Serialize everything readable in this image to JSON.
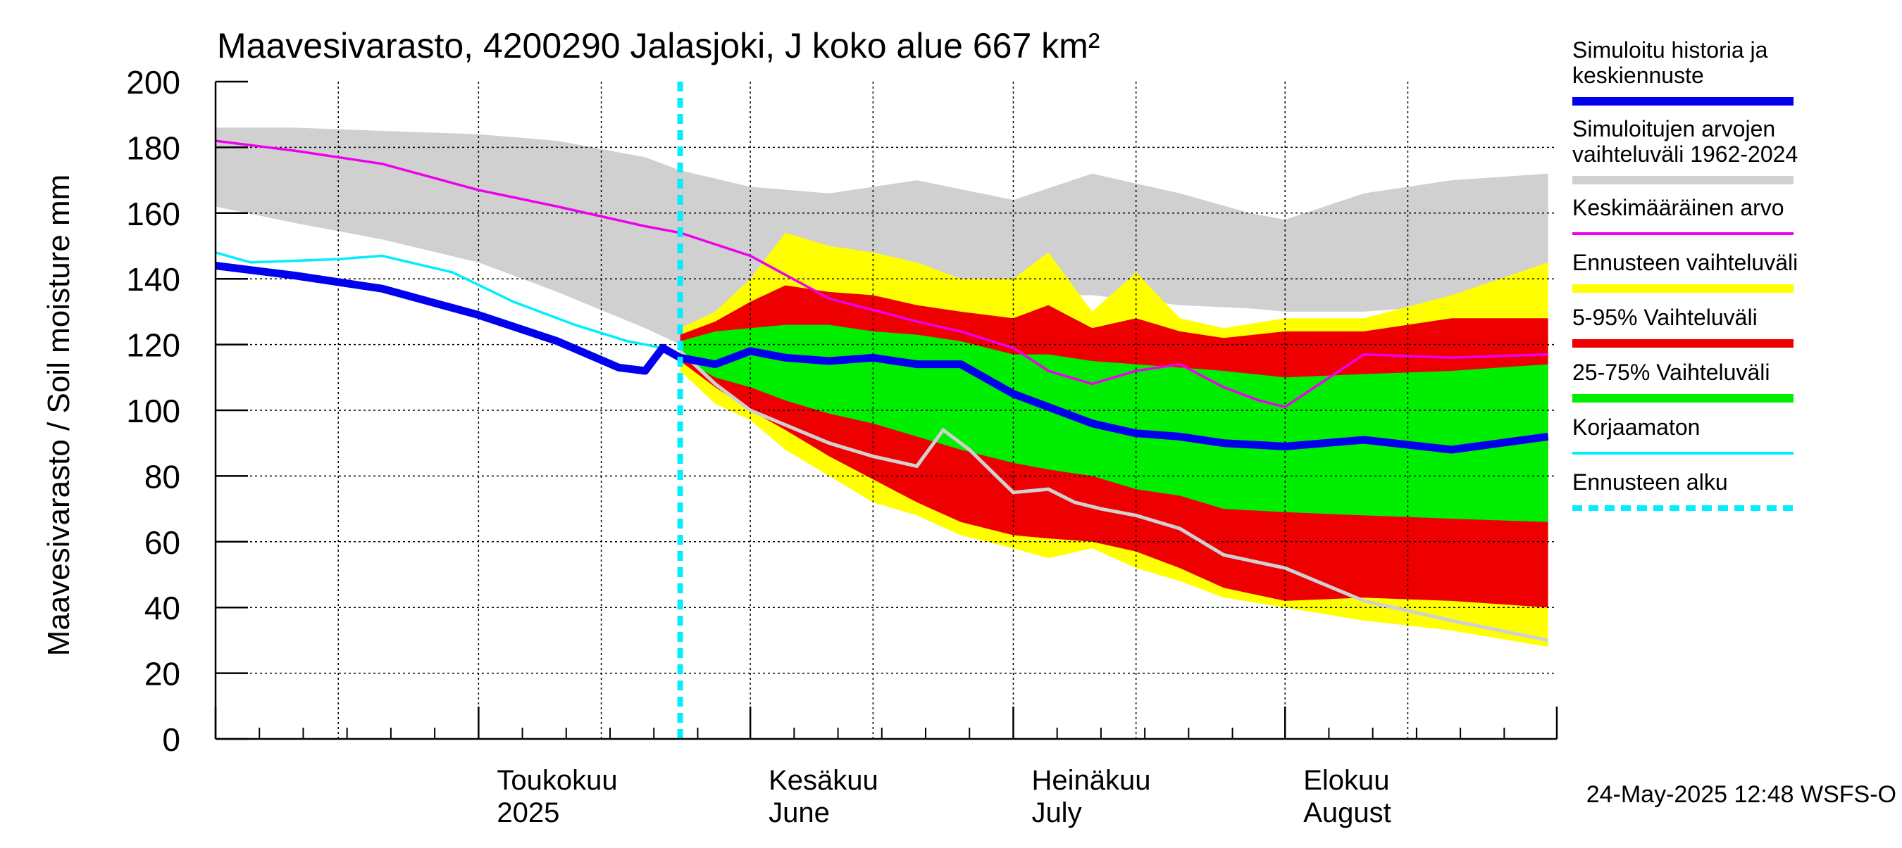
{
  "chart_data": {
    "type": "area",
    "title": "Maavesivarasto, 4200290 Jalasjoki, J koko alue 667 km²",
    "ylabel": "Maavesivarasto / Soil moisture   mm",
    "ylim": [
      0,
      200
    ],
    "yticks": [
      0,
      20,
      40,
      60,
      80,
      100,
      120,
      140,
      160,
      180,
      200
    ],
    "xlim": [
      "2025-04-01",
      "2025-08-31"
    ],
    "grid": true,
    "legend_position": "right",
    "month_labels": [
      {
        "date": "2025-05-01",
        "line1": "Toukokuu",
        "line2": "2025"
      },
      {
        "date": "2025-06-01",
        "line1": "Kesäkuu",
        "line2": "June"
      },
      {
        "date": "2025-07-01",
        "line1": "Heinäkuu",
        "line2": "July"
      },
      {
        "date": "2025-08-01",
        "line1": "Elokuu",
        "line2": "August"
      }
    ],
    "forecast_start": "2025-05-24",
    "timestamp": "24-May-2025 12:48 WSFS-O",
    "legend": [
      {
        "key": "sim",
        "label": [
          "Simuloitu historia ja",
          "keskiennuste"
        ],
        "color": "#0000ee",
        "style": "thick"
      },
      {
        "key": "hist_range",
        "label": [
          "Simuloitujen arvojen",
          "vaihteluväli 1962-2024"
        ],
        "color": "#d0d0d0",
        "style": "thick"
      },
      {
        "key": "mean",
        "label": [
          "Keskimääräinen arvo"
        ],
        "color": "#ee00ee",
        "style": "thin"
      },
      {
        "key": "fc_range",
        "label": [
          "Ennusteen vaihteluväli"
        ],
        "color": "#ffff00",
        "style": "thick"
      },
      {
        "key": "p5_95",
        "label": [
          "5-95% Vaihteluväli"
        ],
        "color": "#ee0000",
        "style": "thick"
      },
      {
        "key": "p25_75",
        "label": [
          "25-75% Vaihteluväli"
        ],
        "color": "#00ee00",
        "style": "thick"
      },
      {
        "key": "uncorr",
        "label": [
          "Korjaamaton"
        ],
        "color": "#00eeff",
        "style": "thin"
      },
      {
        "key": "start",
        "label": [
          "Ennusteen alku"
        ],
        "color": "#00eeff",
        "style": "dashed"
      }
    ],
    "series": {
      "hist_range": {
        "dates": [
          "2025-04-01",
          "2025-04-10",
          "2025-04-20",
          "2025-05-01",
          "2025-05-10",
          "2025-05-20",
          "2025-05-24",
          "2025-06-01",
          "2025-06-10",
          "2025-06-20",
          "2025-07-01",
          "2025-07-10",
          "2025-07-20",
          "2025-07-28",
          "2025-08-01",
          "2025-08-10",
          "2025-08-20",
          "2025-08-31"
        ],
        "upper": [
          186,
          186,
          185,
          184,
          182,
          177,
          173,
          168,
          166,
          170,
          164,
          172,
          166,
          160,
          158,
          166,
          170,
          172
        ],
        "lower": [
          162,
          157,
          152,
          145,
          136,
          125,
          120,
          130,
          133,
          135,
          135,
          135,
          132,
          131,
          130,
          130,
          132,
          136
        ]
      },
      "fc_range": {
        "dates": [
          "2025-05-24",
          "2025-05-28",
          "2025-06-01",
          "2025-06-05",
          "2025-06-10",
          "2025-06-15",
          "2025-06-20",
          "2025-06-25",
          "2025-07-01",
          "2025-07-05",
          "2025-07-10",
          "2025-07-15",
          "2025-07-20",
          "2025-07-25",
          "2025-08-01",
          "2025-08-10",
          "2025-08-20",
          "2025-08-31"
        ],
        "upper": [
          125,
          130,
          140,
          154,
          150,
          148,
          145,
          140,
          140,
          148,
          130,
          142,
          128,
          125,
          128,
          128,
          135,
          145
        ],
        "lower": [
          112,
          102,
          97,
          88,
          80,
          72,
          68,
          62,
          58,
          55,
          58,
          52,
          48,
          43,
          40,
          36,
          33,
          28
        ]
      },
      "p5_95": {
        "dates": [
          "2025-05-24",
          "2025-05-28",
          "2025-06-01",
          "2025-06-05",
          "2025-06-10",
          "2025-06-15",
          "2025-06-20",
          "2025-06-25",
          "2025-07-01",
          "2025-07-05",
          "2025-07-10",
          "2025-07-15",
          "2025-07-20",
          "2025-07-25",
          "2025-08-01",
          "2025-08-10",
          "2025-08-20",
          "2025-08-31"
        ],
        "upper": [
          123,
          127,
          133,
          138,
          136,
          135,
          132,
          130,
          128,
          132,
          125,
          128,
          124,
          122,
          124,
          124,
          128,
          128
        ],
        "lower": [
          115,
          107,
          100,
          94,
          86,
          79,
          72,
          66,
          62,
          61,
          60,
          57,
          52,
          46,
          42,
          43,
          42,
          40
        ]
      },
      "p25_75": {
        "dates": [
          "2025-05-24",
          "2025-05-28",
          "2025-06-01",
          "2025-06-05",
          "2025-06-10",
          "2025-06-15",
          "2025-06-20",
          "2025-06-25",
          "2025-07-01",
          "2025-07-05",
          "2025-07-10",
          "2025-07-15",
          "2025-07-20",
          "2025-07-25",
          "2025-08-01",
          "2025-08-10",
          "2025-08-20",
          "2025-08-31"
        ],
        "upper": [
          121,
          124,
          125,
          126,
          126,
          124,
          123,
          121,
          117,
          117,
          115,
          114,
          113,
          112,
          110,
          111,
          112,
          114
        ],
        "lower": [
          116,
          110,
          107,
          103,
          99,
          96,
          92,
          88,
          84,
          82,
          80,
          76,
          74,
          70,
          69,
          68,
          67,
          66
        ]
      },
      "mean": {
        "dates": [
          "2025-04-01",
          "2025-04-10",
          "2025-04-20",
          "2025-05-01",
          "2025-05-10",
          "2025-05-20",
          "2025-05-24",
          "2025-06-01",
          "2025-06-10",
          "2025-06-20",
          "2025-06-25",
          "2025-07-01",
          "2025-07-05",
          "2025-07-10",
          "2025-07-15",
          "2025-07-20",
          "2025-07-25",
          "2025-07-29",
          "2025-08-01",
          "2025-08-10",
          "2025-08-20",
          "2025-08-31"
        ],
        "values": [
          182,
          179,
          175,
          167,
          162,
          156,
          154,
          147,
          134,
          127,
          124,
          119,
          112,
          108,
          112,
          114,
          107,
          103,
          101,
          117,
          116,
          117
        ]
      },
      "sim": {
        "dates": [
          "2025-04-01",
          "2025-04-10",
          "2025-04-20",
          "2025-05-01",
          "2025-05-10",
          "2025-05-17",
          "2025-05-20",
          "2025-05-22",
          "2025-05-24",
          "2025-05-28",
          "2025-06-01",
          "2025-06-05",
          "2025-06-10",
          "2025-06-15",
          "2025-06-20",
          "2025-06-25",
          "2025-07-01",
          "2025-07-05",
          "2025-07-10",
          "2025-07-15",
          "2025-07-20",
          "2025-07-25",
          "2025-08-01",
          "2025-08-10",
          "2025-08-20",
          "2025-08-31"
        ],
        "values": [
          144,
          141,
          137,
          129,
          121,
          113,
          112,
          119,
          116,
          114,
          118,
          116,
          115,
          116,
          114,
          114,
          105,
          101,
          96,
          93,
          92,
          90,
          89,
          91,
          88,
          92
        ]
      },
      "uncorr": {
        "dates": [
          "2025-04-01",
          "2025-04-05",
          "2025-04-15",
          "2025-04-20",
          "2025-04-28",
          "2025-05-05",
          "2025-05-12",
          "2025-05-18",
          "2025-05-20",
          "2025-05-22",
          "2025-05-24"
        ],
        "values": [
          148,
          145,
          146,
          147,
          142,
          133,
          126,
          121,
          120,
          119,
          117
        ]
      },
      "obs": {
        "dates": [
          "2025-05-24",
          "2025-05-28",
          "2025-06-01",
          "2025-06-10",
          "2025-06-15",
          "2025-06-20",
          "2025-06-23",
          "2025-06-26",
          "2025-07-01",
          "2025-07-05",
          "2025-07-08",
          "2025-07-11",
          "2025-07-15",
          "2025-07-20",
          "2025-07-25",
          "2025-08-01",
          "2025-08-10",
          "2025-08-20",
          "2025-08-31"
        ],
        "values": [
          118,
          108,
          100,
          90,
          86,
          83,
          94,
          88,
          75,
          76,
          72,
          70,
          68,
          64,
          56,
          52,
          42,
          36,
          30
        ]
      }
    }
  }
}
